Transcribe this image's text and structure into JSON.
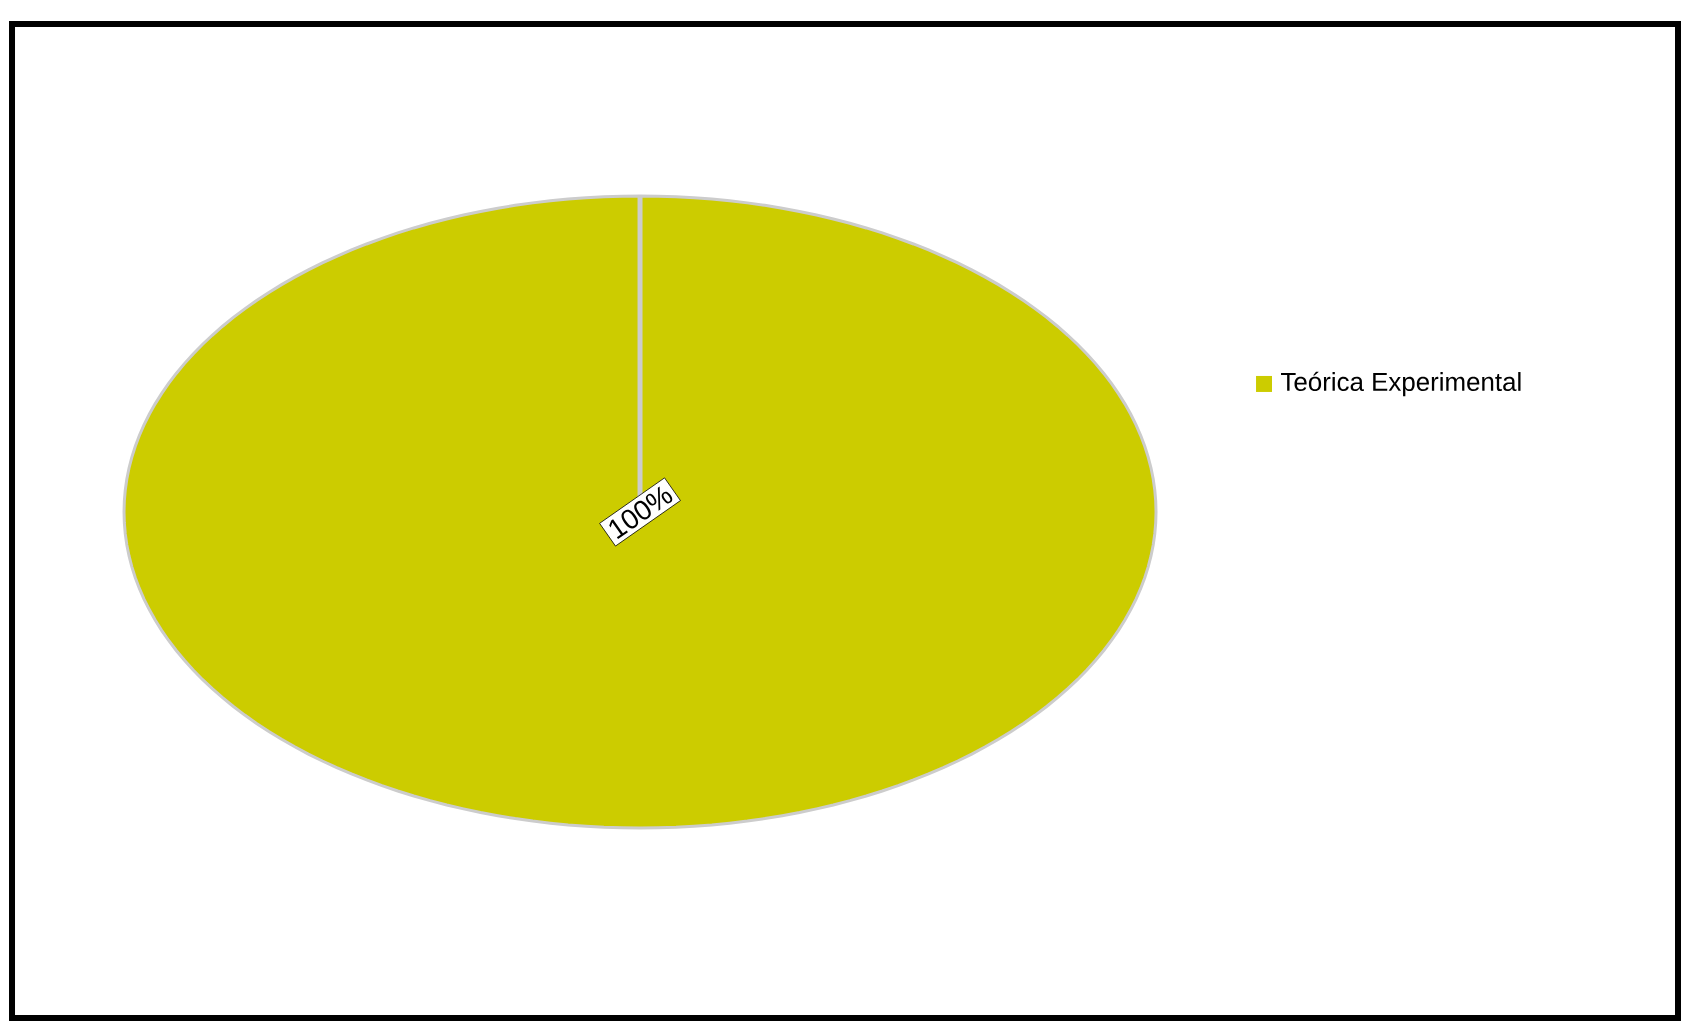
{
  "chart_data": {
    "type": "pie",
    "categories": [
      "Teórica Experimental"
    ],
    "values": [
      100
    ],
    "colors": [
      "#cccc00"
    ],
    "value_labels": [
      "100%"
    ],
    "legend": "right"
  }
}
